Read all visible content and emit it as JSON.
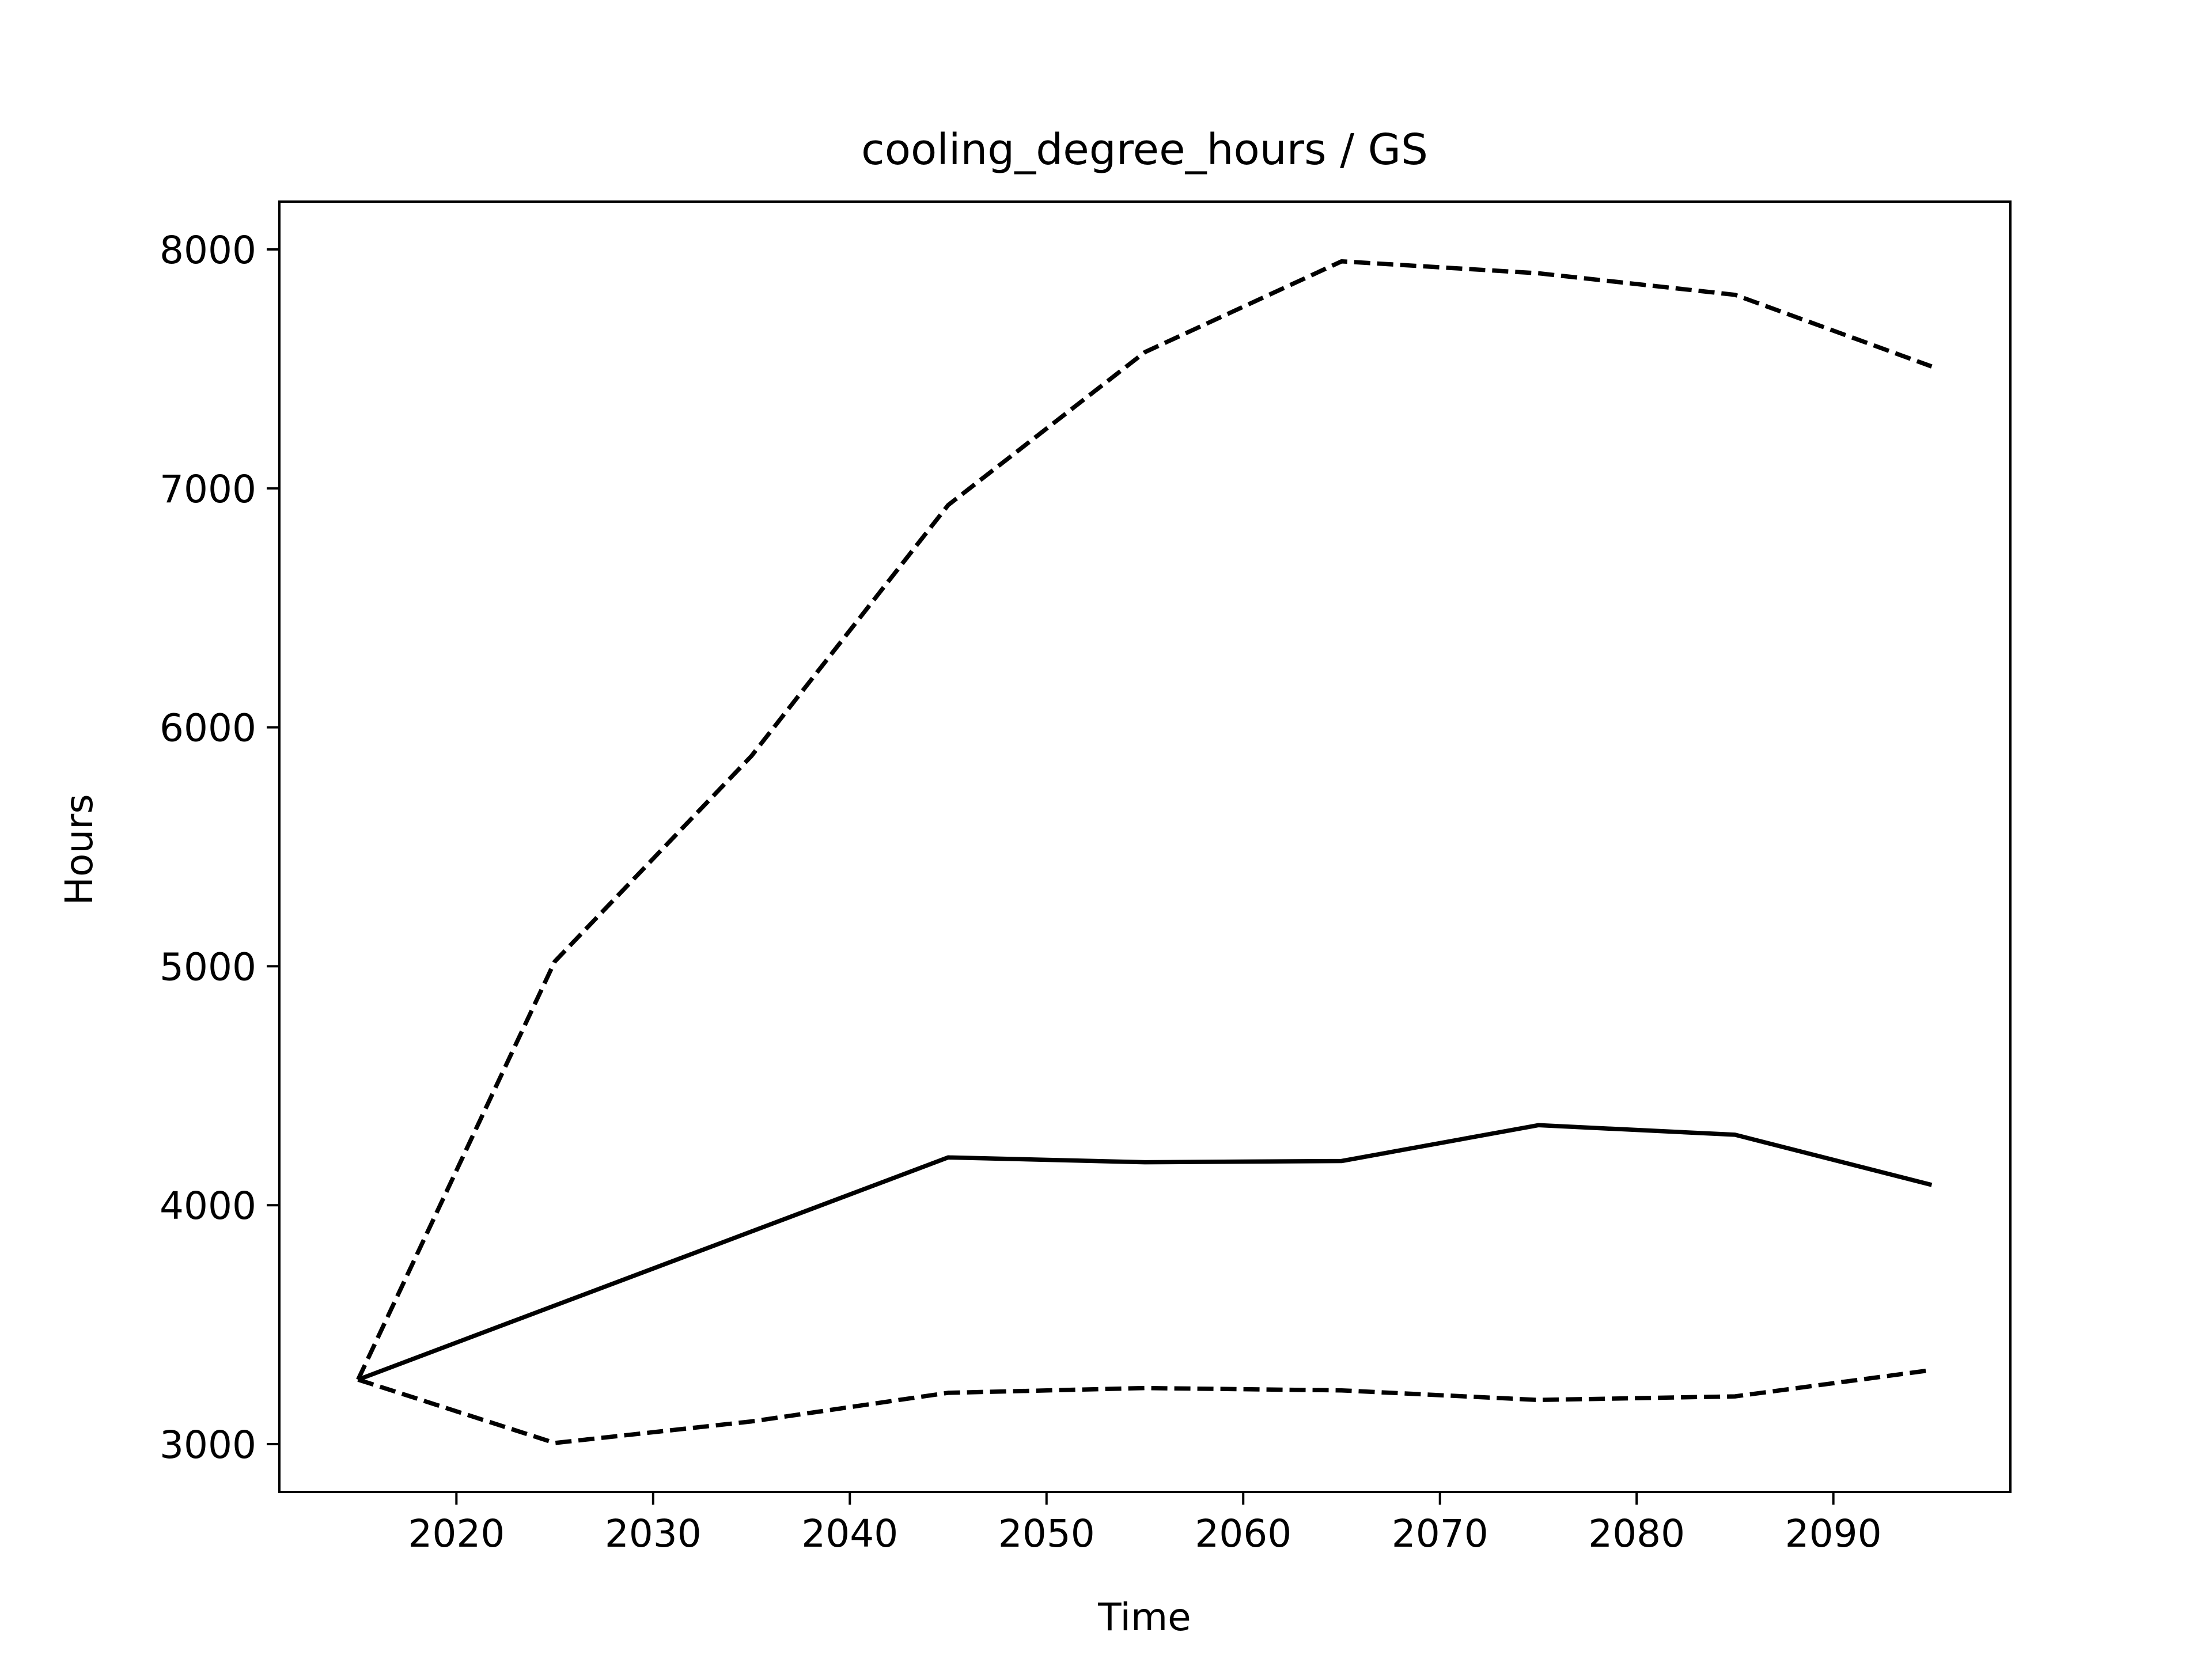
{
  "chart_data": {
    "type": "line",
    "title": "cooling_degree_hours / GS",
    "xlabel": "Time",
    "ylabel": "Hours",
    "xlim": [
      2011.0,
      2099.0
    ],
    "ylim": [
      2800,
      8200
    ],
    "xticks": [
      2020,
      2030,
      2040,
      2050,
      2060,
      2070,
      2080,
      2090
    ],
    "yticks": [
      3000,
      4000,
      5000,
      6000,
      7000,
      8000
    ],
    "grid": false,
    "x": [
      2015,
      2025,
      2035,
      2045,
      2055,
      2065,
      2075,
      2085,
      2095
    ],
    "series": [
      {
        "style": "solid",
        "values": [
          3270,
          3580,
          3890,
          4200,
          4180,
          4185,
          4335,
          4295,
          4085
        ]
      },
      {
        "style": "dashed",
        "values": [
          3270,
          5020,
          5880,
          6930,
          7570,
          7950,
          7900,
          7810,
          7510
        ]
      },
      {
        "style": "dashed",
        "values": [
          3270,
          3005,
          3095,
          3215,
          3235,
          3225,
          3185,
          3200,
          3310
        ]
      }
    ],
    "colors": {
      "line": "#000000",
      "axes": "#000000",
      "background": "#ffffff"
    }
  }
}
